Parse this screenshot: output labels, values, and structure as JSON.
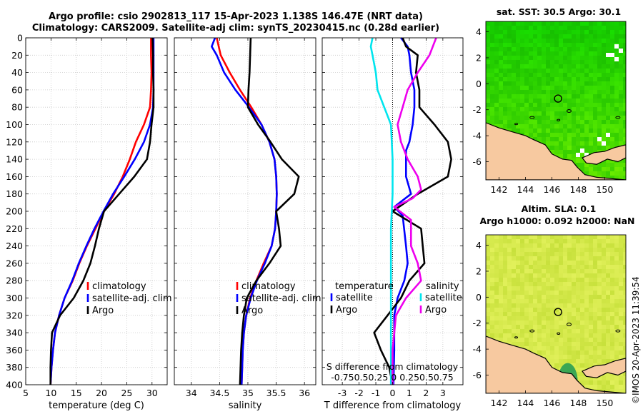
{
  "header": {
    "title_line1": "Argo profile: csio 2902813_117 15-Apr-2023 1.138S 146.47E (NRT data)",
    "title_line2": "Climatology: CARS2009. Satellite-adj clim: synTS_20230415.nc (0.28d earlier)"
  },
  "credit": "©IMOS 20-Apr-2023 11:39:54",
  "colors": {
    "climatology": "#ff0000",
    "satellite": "#0000ff",
    "argo": "#000000",
    "s_satellite": "#00e5ee",
    "s_argo": "#ee00ee",
    "land": "#f7c9a0",
    "sst_green": "#22cc00",
    "sla_yellow": "#d8ee40"
  },
  "chart_data": [
    {
      "type": "line",
      "name": "temperature-profile",
      "xlabel": "temperature (deg C)",
      "xlim": [
        5,
        33
      ],
      "xticks": [
        5,
        10,
        15,
        20,
        25,
        30
      ],
      "ylim": [
        400,
        0
      ],
      "yticks": [
        0,
        20,
        40,
        60,
        80,
        100,
        120,
        140,
        160,
        180,
        200,
        220,
        240,
        260,
        280,
        300,
        320,
        340,
        360,
        380,
        400
      ],
      "grid": true,
      "legend": [
        "climatology",
        "satellite-adj. clim",
        "Argo"
      ],
      "series": [
        {
          "name": "climatology",
          "color": "#ff0000",
          "points": [
            [
              29.8,
              0
            ],
            [
              29.8,
              20
            ],
            [
              29.9,
              40
            ],
            [
              29.8,
              60
            ],
            [
              29.6,
              80
            ],
            [
              28.4,
              100
            ],
            [
              26.8,
              120
            ],
            [
              25.6,
              140
            ],
            [
              24.2,
              160
            ],
            [
              22.5,
              180
            ],
            [
              20.5,
              200
            ],
            [
              18.8,
              220
            ],
            [
              17.1,
              240
            ],
            [
              15.6,
              260
            ],
            [
              14.3,
              280
            ],
            [
              12.7,
              300
            ],
            [
              11.6,
              320
            ],
            [
              10.8,
              340
            ],
            [
              10.4,
              360
            ],
            [
              10.1,
              380
            ],
            [
              9.9,
              400
            ]
          ]
        },
        {
          "name": "satellite-adj. clim",
          "color": "#0000ff",
          "points": [
            [
              30.3,
              0
            ],
            [
              30.3,
              20
            ],
            [
              30.3,
              40
            ],
            [
              30.3,
              60
            ],
            [
              30.2,
              80
            ],
            [
              29.6,
              100
            ],
            [
              28.4,
              120
            ],
            [
              26.6,
              140
            ],
            [
              24.5,
              160
            ],
            [
              22.3,
              180
            ],
            [
              20.4,
              200
            ],
            [
              18.6,
              220
            ],
            [
              17.0,
              240
            ],
            [
              15.5,
              260
            ],
            [
              14.2,
              280
            ],
            [
              12.7,
              300
            ],
            [
              11.6,
              320
            ],
            [
              10.8,
              340
            ],
            [
              10.4,
              360
            ],
            [
              10.1,
              380
            ],
            [
              9.9,
              400
            ]
          ]
        },
        {
          "name": "Argo",
          "color": "#000000",
          "points": [
            [
              30.1,
              0
            ],
            [
              30.2,
              20
            ],
            [
              30.2,
              40
            ],
            [
              30.3,
              60
            ],
            [
              30.3,
              80
            ],
            [
              29.9,
              100
            ],
            [
              29.6,
              120
            ],
            [
              29.0,
              140
            ],
            [
              26.5,
              160
            ],
            [
              23.5,
              180
            ],
            [
              20.5,
              200
            ],
            [
              19.5,
              220
            ],
            [
              18.7,
              240
            ],
            [
              17.8,
              260
            ],
            [
              16.4,
              280
            ],
            [
              14.5,
              300
            ],
            [
              11.8,
              320
            ],
            [
              10.2,
              340
            ],
            [
              10.0,
              360
            ],
            [
              9.9,
              380
            ],
            [
              9.9,
              400
            ]
          ]
        }
      ]
    },
    {
      "type": "line",
      "name": "salinity-profile",
      "xlabel": "salinity",
      "xlim": [
        33.7,
        36.2
      ],
      "xticks": [
        34,
        34.5,
        35,
        35.5,
        36
      ],
      "ylim": [
        400,
        0
      ],
      "grid": true,
      "legend": [
        "climatology",
        "satellite-adj. clim",
        "Argo"
      ],
      "series": [
        {
          "name": "climatology",
          "color": "#ff0000",
          "points": [
            [
              34.45,
              0
            ],
            [
              34.52,
              20
            ],
            [
              34.68,
              40
            ],
            [
              34.86,
              60
            ],
            [
              35.06,
              80
            ],
            [
              35.24,
              100
            ],
            [
              35.38,
              120
            ],
            [
              35.47,
              140
            ],
            [
              35.5,
              160
            ],
            [
              35.51,
              180
            ],
            [
              35.5,
              200
            ],
            [
              35.48,
              220
            ],
            [
              35.42,
              240
            ],
            [
              35.28,
              260
            ],
            [
              35.15,
              280
            ],
            [
              35.04,
              300
            ],
            [
              34.97,
              320
            ],
            [
              34.93,
              340
            ],
            [
              34.91,
              360
            ],
            [
              34.9,
              380
            ],
            [
              34.89,
              400
            ]
          ]
        },
        {
          "name": "satellite-adj. clim",
          "color": "#0000ff",
          "points": [
            [
              34.42,
              0
            ],
            [
              34.36,
              10
            ],
            [
              34.45,
              20
            ],
            [
              34.58,
              40
            ],
            [
              34.78,
              60
            ],
            [
              35.02,
              80
            ],
            [
              35.24,
              100
            ],
            [
              35.38,
              120
            ],
            [
              35.47,
              140
            ],
            [
              35.5,
              160
            ],
            [
              35.51,
              180
            ],
            [
              35.5,
              200
            ],
            [
              35.48,
              220
            ],
            [
              35.42,
              240
            ],
            [
              35.3,
              260
            ],
            [
              35.16,
              280
            ],
            [
              35.05,
              300
            ],
            [
              34.97,
              320
            ],
            [
              34.93,
              340
            ],
            [
              34.91,
              360
            ],
            [
              34.9,
              380
            ],
            [
              34.89,
              400
            ]
          ]
        },
        {
          "name": "Argo",
          "color": "#000000",
          "points": [
            [
              35.05,
              0
            ],
            [
              35.04,
              20
            ],
            [
              35.03,
              40
            ],
            [
              35.01,
              60
            ],
            [
              35.0,
              80
            ],
            [
              35.18,
              100
            ],
            [
              35.4,
              120
            ],
            [
              35.6,
              140
            ],
            [
              35.9,
              160
            ],
            [
              35.82,
              180
            ],
            [
              35.5,
              200
            ],
            [
              35.55,
              220
            ],
            [
              35.58,
              240
            ],
            [
              35.38,
              260
            ],
            [
              35.15,
              280
            ],
            [
              34.98,
              300
            ],
            [
              34.93,
              320
            ],
            [
              34.9,
              340
            ],
            [
              34.88,
              360
            ],
            [
              34.87,
              380
            ],
            [
              34.86,
              400
            ]
          ]
        }
      ]
    },
    {
      "type": "line",
      "name": "difference-profile",
      "xlabel": "T difference from climatology",
      "xlim": [
        -4.2,
        4.2
      ],
      "xticks": [
        -3,
        -2,
        -1,
        0,
        1,
        2,
        3
      ],
      "top_axis_label": "S difference from climatology",
      "top_ticks_text": "-0.750.50.25 0  0.250.50.75",
      "ylim": [
        400,
        0
      ],
      "grid": true,
      "legend_left_title": "temperature",
      "legend_right_title": "salinity",
      "legend_left": [
        "satellite",
        "Argo"
      ],
      "legend_right": [
        "satellite",
        "Argo"
      ],
      "series": [
        {
          "name": "T satellite",
          "color": "#0000ff",
          "points": [
            [
              0.5,
              0
            ],
            [
              0.9,
              10
            ],
            [
              1.0,
              20
            ],
            [
              1.1,
              40
            ],
            [
              1.3,
              60
            ],
            [
              1.3,
              80
            ],
            [
              1.2,
              100
            ],
            [
              1.0,
              120
            ],
            [
              0.8,
              130
            ],
            [
              0.8,
              160
            ],
            [
              1.1,
              180
            ],
            [
              0.1,
              195
            ],
            [
              0.6,
              205
            ],
            [
              0.8,
              240
            ],
            [
              0.9,
              260
            ],
            [
              0.7,
              280
            ],
            [
              0.3,
              300
            ],
            [
              0.1,
              320
            ],
            [
              0.1,
              360
            ],
            [
              0.05,
              400
            ]
          ]
        },
        {
          "name": "T Argo",
          "color": "#000000",
          "points": [
            [
              0.6,
              0
            ],
            [
              0.8,
              10
            ],
            [
              1.5,
              20
            ],
            [
              1.4,
              40
            ],
            [
              1.6,
              60
            ],
            [
              1.6,
              80
            ],
            [
              2.5,
              100
            ],
            [
              3.3,
              120
            ],
            [
              3.5,
              140
            ],
            [
              3.3,
              160
            ],
            [
              1.5,
              180
            ],
            [
              0.0,
              200
            ],
            [
              1.7,
              220
            ],
            [
              1.8,
              240
            ],
            [
              1.9,
              260
            ],
            [
              1.0,
              280
            ],
            [
              0.5,
              300
            ],
            [
              -0.3,
              320
            ],
            [
              -1.1,
              340
            ],
            [
              -0.7,
              360
            ],
            [
              -0.2,
              380
            ],
            [
              0.0,
              400
            ]
          ]
        },
        {
          "name": "S satellite",
          "color": "#00e5ee",
          "points": [
            [
              -1.2,
              0
            ],
            [
              -1.3,
              10
            ],
            [
              -1.2,
              20
            ],
            [
              -1.0,
              40
            ],
            [
              -0.9,
              60
            ],
            [
              -0.5,
              80
            ],
            [
              -0.1,
              100
            ],
            [
              0.0,
              140
            ],
            [
              0.0,
              180
            ],
            [
              -0.1,
              220
            ],
            [
              -0.1,
              300
            ],
            [
              -0.1,
              360
            ],
            [
              -0.1,
              400
            ]
          ]
        },
        {
          "name": "S Argo",
          "color": "#ee00ee",
          "points": [
            [
              2.6,
              0
            ],
            [
              2.2,
              20
            ],
            [
              1.5,
              40
            ],
            [
              0.9,
              60
            ],
            [
              0.6,
              80
            ],
            [
              0.3,
              100
            ],
            [
              0.5,
              120
            ],
            [
              0.9,
              140
            ],
            [
              1.5,
              160
            ],
            [
              1.7,
              175
            ],
            [
              1.2,
              185
            ],
            [
              0.1,
              195
            ],
            [
              1.1,
              210
            ],
            [
              1.1,
              240
            ],
            [
              1.5,
              260
            ],
            [
              1.7,
              280
            ],
            [
              0.8,
              300
            ],
            [
              0.2,
              320
            ],
            [
              0.0,
              360
            ],
            [
              0.0,
              400
            ]
          ]
        }
      ]
    },
    {
      "type": "heatmap",
      "name": "sst-map",
      "title": "sat. SST: 30.5 Argo: 30.1",
      "xticks": [
        142,
        144,
        146,
        148,
        150
      ],
      "yticks": [
        4,
        2,
        0,
        -2,
        -4,
        -6
      ],
      "xlim": [
        141.0,
        151.6
      ],
      "ylim": [
        -7.4,
        4.8
      ],
      "float_position": [
        146.47,
        -1.14
      ]
    },
    {
      "type": "heatmap",
      "name": "sla-map",
      "title_line1": "Altim. SLA: 0.1",
      "title_line2": "Argo h1000: 0.092 h2000: NaN",
      "xticks": [
        142,
        144,
        146,
        148,
        150
      ],
      "yticks": [
        4,
        2,
        0,
        -2,
        -4,
        -6
      ],
      "xlim": [
        141.0,
        151.6
      ],
      "ylim": [
        -7.4,
        4.8
      ],
      "float_position": [
        146.47,
        -1.14
      ]
    }
  ]
}
